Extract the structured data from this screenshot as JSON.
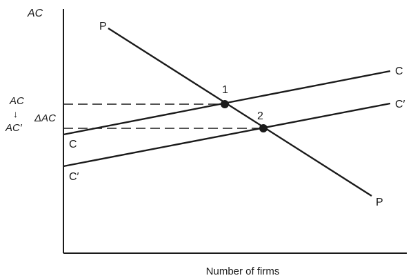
{
  "axes": {
    "y_label": "AC",
    "x_label": "Number of firms"
  },
  "curves": {
    "pp": {
      "start_label": "P",
      "end_label": "P"
    },
    "cc": {
      "start_label": "C",
      "end_label": "C"
    },
    "cc_prime": {
      "start_label": "C′",
      "end_label": "C′"
    }
  },
  "equilibria": {
    "point1": {
      "label": "1"
    },
    "point2": {
      "label": "2"
    }
  },
  "annotations": {
    "ac_top": "AC",
    "arrow": "↓",
    "ac_bottom": "AC′",
    "delta_ac": "ΔAC"
  },
  "colors": {
    "ink": "#1a1a1a"
  }
}
